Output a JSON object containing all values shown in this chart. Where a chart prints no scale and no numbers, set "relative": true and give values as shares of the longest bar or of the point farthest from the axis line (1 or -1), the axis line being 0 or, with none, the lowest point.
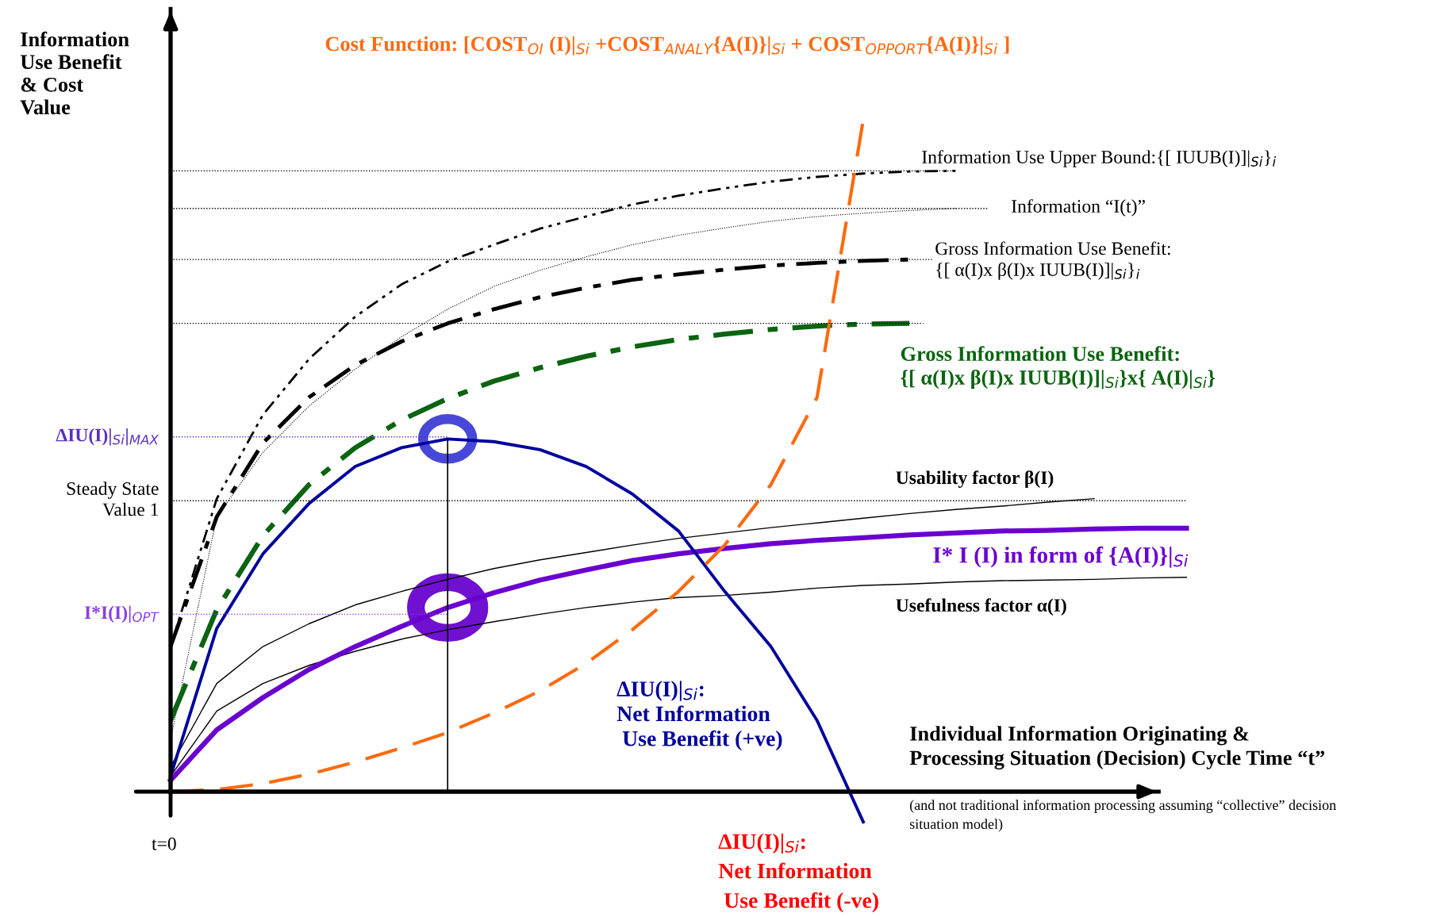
{
  "chart_data": {
    "type": "line",
    "relative": true,
    "categories": [
      null,
      null,
      null,
      null,
      null,
      null,
      null,
      null,
      null,
      null,
      null,
      null,
      null,
      null,
      null,
      null,
      null,
      null,
      null,
      null,
      null,
      null,
      null
    ],
    "series": [
      {
        "name": "Information Use Upper Bound:{[ IUUB(I)]|$_{Si}$}$_{i}$",
        "color": "#000000",
        "line_style": "dashdotdot",
        "values": [
          0.216,
          0.436,
          0.561,
          0.644,
          0.707,
          0.755,
          0.789,
          0.814,
          0.838,
          0.856,
          0.874,
          0.887,
          0.898,
          0.908,
          0.915,
          0.92,
          0.923,
          0.924,
          null,
          null,
          null,
          null,
          null
        ]
      },
      {
        "name": "Information “I(t)”",
        "color": "#000000",
        "line_style": "dotted",
        "values": [
          0.078,
          0.409,
          0.505,
          0.574,
          0.629,
          0.677,
          0.718,
          0.752,
          0.776,
          0.796,
          0.814,
          0.828,
          0.839,
          0.849,
          0.856,
          0.861,
          0.865,
          0.868,
          null,
          null,
          null,
          null,
          null
        ]
      },
      {
        "name": "Gross Information Use Benefit:\n{[ α(I)x β(I)x IUUB(I)]|$_{Si}$}$_{i}$",
        "color": "#000000",
        "line_style": "dashdot",
        "values": [
          0.216,
          0.409,
          0.519,
          0.587,
          0.635,
          0.67,
          0.697,
          0.718,
          0.736,
          0.75,
          0.762,
          0.77,
          0.777,
          0.783,
          0.787,
          0.79,
          0.792,
          null,
          null,
          null,
          null,
          null,
          null
        ]
      },
      {
        "name": "Gross Information Use Benefit:\n{[ α(I)x β(I)x IUUB(I)]|$_{Si}$}x{ A(I)|$_{Si}$}",
        "color": "#0a6410",
        "line_style": "dashdot",
        "values": [
          0.106,
          0.271,
          0.381,
          0.457,
          0.512,
          0.553,
          0.585,
          0.611,
          0.631,
          0.648,
          0.662,
          0.673,
          0.681,
          0.688,
          0.693,
          0.696,
          0.697,
          null,
          null,
          null,
          null,
          null,
          null
        ]
      },
      {
        "name": "Usability factor β(I)",
        "color": "#000000",
        "line_style": "solid",
        "values": [
          0.037,
          0.161,
          0.216,
          0.25,
          0.278,
          0.298,
          0.316,
          0.332,
          0.345,
          0.356,
          0.367,
          0.377,
          0.385,
          0.393,
          0.4,
          0.407,
          0.414,
          0.42,
          0.425,
          0.431,
          0.436,
          null,
          null
        ]
      },
      {
        "name": "Usefulness factor α(I)",
        "color": "#000000",
        "line_style": "solid",
        "values": [
          0.023,
          0.12,
          0.161,
          0.188,
          0.209,
          0.227,
          0.241,
          0.253,
          0.264,
          0.274,
          0.282,
          0.289,
          0.292,
          0.297,
          0.303,
          0.307,
          0.309,
          0.312,
          0.314,
          0.315,
          0.316,
          0.318,
          0.319
        ]
      },
      {
        "name": "I* I (I) in form of {A(I)}|$_{Si}$",
        "color": "#6a00d0",
        "line_style": "solid",
        "values": [
          0.017,
          0.092,
          0.14,
          0.182,
          0.216,
          0.246,
          0.274,
          0.296,
          0.315,
          0.33,
          0.344,
          0.354,
          0.362,
          0.369,
          0.374,
          0.378,
          0.382,
          0.385,
          0.388,
          0.389,
          0.391,
          0.392,
          0.392
        ]
      },
      {
        "name": "ΔIU(I)|$_{Si}$:\nNet Information\n Use Benefit (+ve)",
        "color": "#00009c",
        "line_style": "solid",
        "values": [
          0.023,
          0.243,
          0.354,
          0.429,
          0.484,
          0.512,
          0.525,
          0.521,
          0.509,
          0.484,
          0.443,
          0.388,
          0.298,
          0.216,
          0.106,
          -0.045,
          null,
          null,
          null,
          null,
          null,
          null,
          null
        ]
      },
      {
        "name": "Cost Function: [COST$_{OI}$ (I)|$_{Si}$ +COST$_{ANALY}${A(I)}|$_{Si}$ + COST$_{OPPORT}${A(I)}|$_{Si}$ ]",
        "color": "#ff6a10",
        "line_style": "dashed",
        "values": [
          0.0,
          0.003,
          0.012,
          0.026,
          0.044,
          0.065,
          0.088,
          0.117,
          0.15,
          0.191,
          0.241,
          0.298,
          0.367,
          0.457,
          0.587,
          1.0,
          null,
          null,
          null,
          null,
          null,
          null,
          null
        ]
      }
    ],
    "ref_lines": [
      {
        "axis": "y",
        "value": 0.924,
        "color": "#000000",
        "line_style": "dotted"
      },
      {
        "axis": "y",
        "value": 0.868,
        "color": "#000000",
        "line_style": "dotted"
      },
      {
        "axis": "y",
        "value": 0.792,
        "color": "#000000",
        "line_style": "dotted"
      },
      {
        "axis": "y",
        "value": 0.697,
        "color": "#000000",
        "line_style": "dotted"
      },
      {
        "axis": "y",
        "value": 0.528,
        "color": "#5a30c0",
        "line_style": "dotted",
        "label": "ΔIU(I)|$_{Si}$|$_{MAX}$"
      },
      {
        "axis": "y",
        "value": 0.433,
        "color": "#000000",
        "line_style": "dotted",
        "label": "Steady State\nValue 1"
      },
      {
        "axis": "y",
        "value": 0.264,
        "color": "#8a40e0",
        "line_style": "dotted",
        "label": "I*I(I)|$_{OPT}$"
      }
    ],
    "ylabel": "Information\nUse Benefit\n& Cost\nValue",
    "xlabel": "Individual Information Originating &\nProcessing Situation (Decision) Cycle Time “t”",
    "annotations": [
      "t=0",
      "(and not traditional information processing assuming “collective” decision\nsituation model)",
      "ΔIU(I)|$_{Si}$:\nNet Information\n Use Benefit (-ve)"
    ]
  }
}
